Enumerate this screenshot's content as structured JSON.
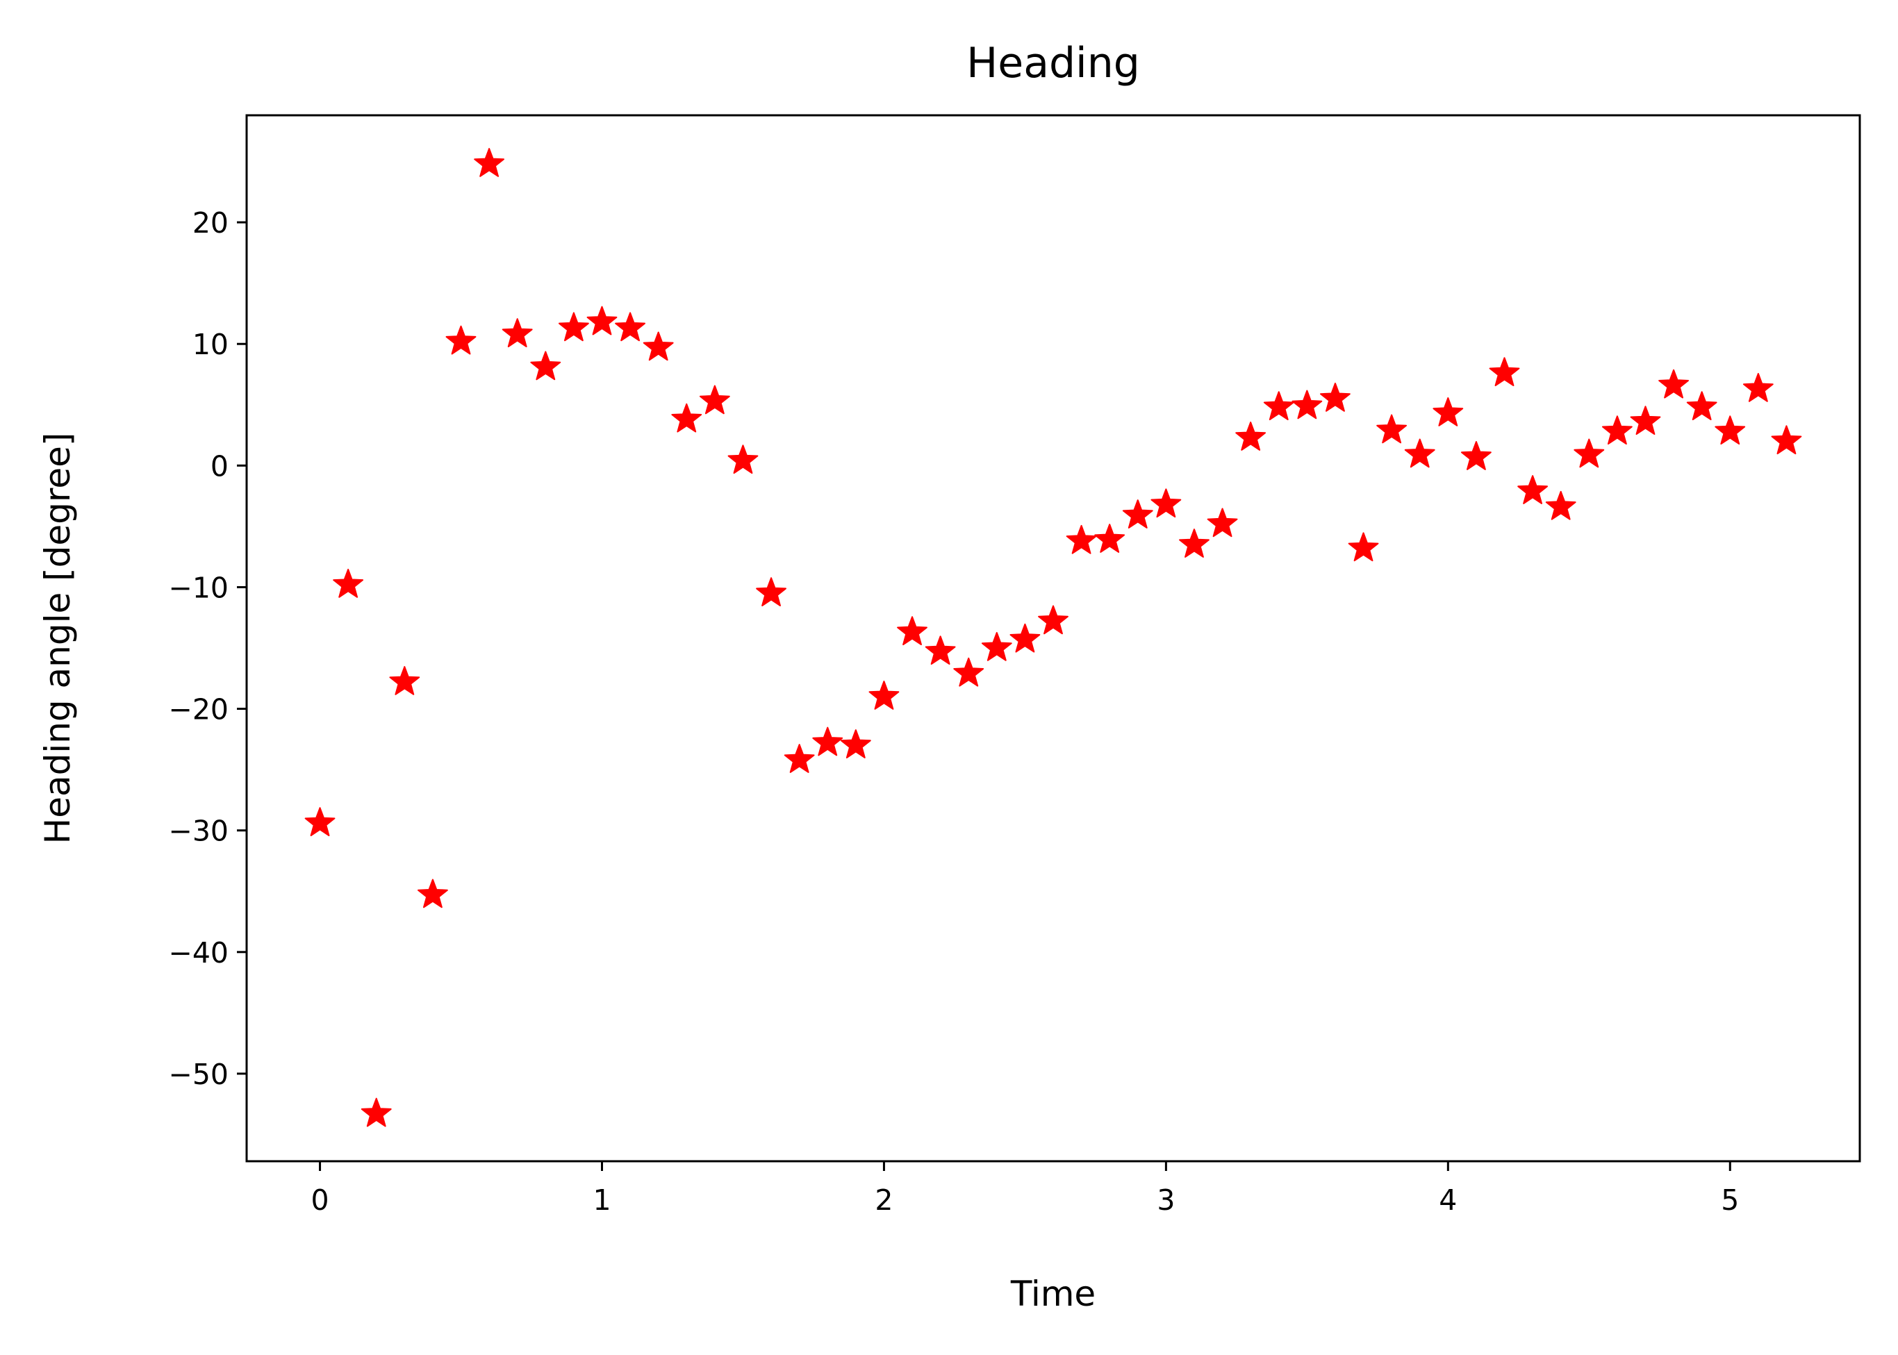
{
  "chart_data": {
    "type": "scatter",
    "title": "Heading",
    "xlabel": "Time",
    "ylabel": "Heading angle [degree]",
    "xlim": [
      -0.26,
      5.46
    ],
    "ylim": [
      -57.2,
      28.8
    ],
    "xticks": [
      0,
      1,
      2,
      3,
      4,
      5
    ],
    "yticks": [
      -50,
      -40,
      -30,
      -20,
      -10,
      0,
      10,
      20
    ],
    "xtick_labels": [
      "0",
      "1",
      "2",
      "3",
      "4",
      "5"
    ],
    "ytick_labels": [
      "−50",
      "−40",
      "−30",
      "−20",
      "−10",
      "0",
      "10",
      "20"
    ],
    "grid": false,
    "marker": "star",
    "color": "#ff0000",
    "series": [
      {
        "x": [
          0,
          0.1,
          0.2,
          0.3,
          0.4,
          0.5,
          0.6,
          0.7,
          0.8,
          0.9,
          1.0,
          1.1,
          1.2,
          1.3,
          1.4,
          1.5,
          1.6,
          1.7,
          1.8,
          1.9,
          2.0,
          2.1,
          2.2,
          2.3,
          2.4,
          2.5,
          2.6,
          2.7,
          2.8,
          2.9,
          3.0,
          3.1,
          3.2,
          3.3,
          3.4,
          3.5,
          3.6,
          3.7,
          3.8,
          3.9,
          4.0,
          4.1,
          4.2,
          4.3,
          4.4,
          4.5,
          4.6,
          4.7,
          4.8,
          4.9,
          5.0,
          5.1,
          5.2
        ],
        "y": [
          -29.4,
          -9.8,
          -53.3,
          -17.8,
          -35.3,
          10.2,
          24.8,
          10.8,
          8.1,
          11.3,
          11.8,
          11.3,
          9.7,
          3.8,
          5.3,
          0.4,
          -10.5,
          -24.2,
          -22.8,
          -23.0,
          -19.0,
          -13.7,
          -15.3,
          -17.1,
          -15.0,
          -14.3,
          -12.8,
          -6.2,
          -6.1,
          -4.1,
          -3.2,
          -6.5,
          -4.8,
          2.3,
          4.8,
          4.9,
          5.5,
          -6.8,
          2.9,
          0.9,
          4.3,
          0.7,
          7.6,
          -2.1,
          -3.4,
          0.9,
          2.8,
          3.6,
          6.6,
          4.8,
          2.8,
          6.3,
          2.0
        ]
      }
    ]
  }
}
